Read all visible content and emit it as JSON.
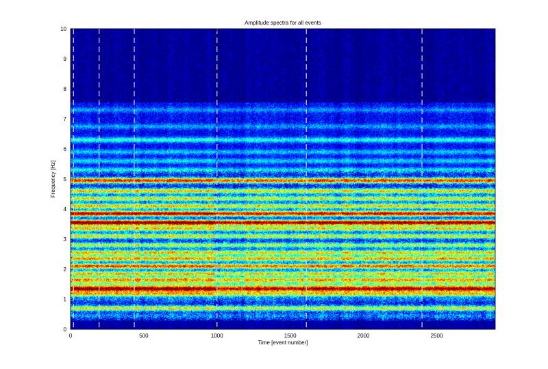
{
  "chart_data": {
    "type": "heatmap",
    "title": "Amplitude spectra for all events",
    "xlabel": "Time [event number]",
    "ylabel": "Frequency [Hz]",
    "xlim": [
      0,
      2900
    ],
    "ylim": [
      0,
      10
    ],
    "xticks": [
      0,
      500,
      1000,
      1500,
      2000,
      2500
    ],
    "yticks": [
      0,
      1,
      2,
      3,
      4,
      5,
      6,
      7,
      8,
      9,
      10
    ],
    "colormap": [
      "#00007f",
      "#0000ff",
      "#007fff",
      "#00ffff",
      "#7fff7f",
      "#ffff00",
      "#ff7f00",
      "#ff0000",
      "#7f0000"
    ],
    "background_color": "#00007f",
    "marker_lines": [
      20,
      195,
      435,
      1000,
      1610,
      2400
    ],
    "marker_line_style": "dashed",
    "frequency_bands": [
      {
        "f": 0.45,
        "amp": 0.15
      },
      {
        "f": 0.7,
        "amp": 0.5
      },
      {
        "f": 1.0,
        "amp": 0.12
      },
      {
        "f": 1.18,
        "amp": 0.55
      },
      {
        "f": 1.35,
        "amp": 0.9
      },
      {
        "f": 1.5,
        "amp": 0.3
      },
      {
        "f": 1.65,
        "amp": 0.6
      },
      {
        "f": 1.85,
        "amp": 0.55
      },
      {
        "f": 2.1,
        "amp": 0.7
      },
      {
        "f": 2.35,
        "amp": 0.6
      },
      {
        "f": 2.55,
        "amp": 0.55
      },
      {
        "f": 2.8,
        "amp": 0.45
      },
      {
        "f": 3.1,
        "amp": 0.5
      },
      {
        "f": 3.35,
        "amp": 0.55
      },
      {
        "f": 3.55,
        "amp": 0.95
      },
      {
        "f": 3.85,
        "amp": 0.85
      },
      {
        "f": 4.1,
        "amp": 0.55
      },
      {
        "f": 4.35,
        "amp": 0.5
      },
      {
        "f": 4.6,
        "amp": 0.55
      },
      {
        "f": 4.95,
        "amp": 0.75
      },
      {
        "f": 5.3,
        "amp": 0.35
      },
      {
        "f": 5.6,
        "amp": 0.3
      },
      {
        "f": 5.9,
        "amp": 0.28
      },
      {
        "f": 6.3,
        "amp": 0.4
      },
      {
        "f": 6.75,
        "amp": 0.22
      },
      {
        "f": 7.3,
        "amp": 0.2
      }
    ]
  }
}
